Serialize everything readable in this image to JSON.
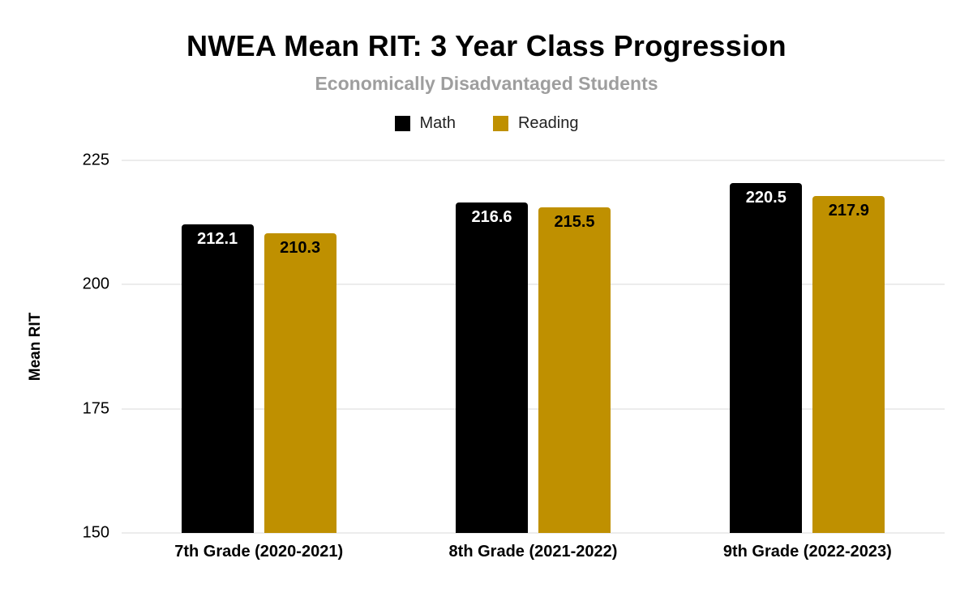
{
  "chart_data": {
    "type": "bar",
    "title": "NWEA Mean RIT: 3 Year Class Progression",
    "subtitle": "Economically Disadvantaged Students",
    "ylabel": "Mean RIT",
    "xlabel": "",
    "ylim": [
      150,
      225
    ],
    "yticks": [
      150,
      175,
      200,
      225
    ],
    "grid": true,
    "legend_position": "top",
    "categories": [
      "7th Grade (2020-2021)",
      "8th Grade (2021-2022)",
      "9th Grade (2022-2023)"
    ],
    "series": [
      {
        "name": "Math",
        "color": "#000000",
        "label_color": "#ffffff",
        "values": [
          212.1,
          216.6,
          220.5
        ]
      },
      {
        "name": "Reading",
        "color": "#bf9000",
        "label_color": "#000000",
        "values": [
          210.3,
          215.5,
          217.9
        ]
      }
    ],
    "colors": {
      "grid": "#d9d9d9",
      "subtitle": "#9e9e9e",
      "text": "#000000",
      "background": "#ffffff"
    }
  }
}
